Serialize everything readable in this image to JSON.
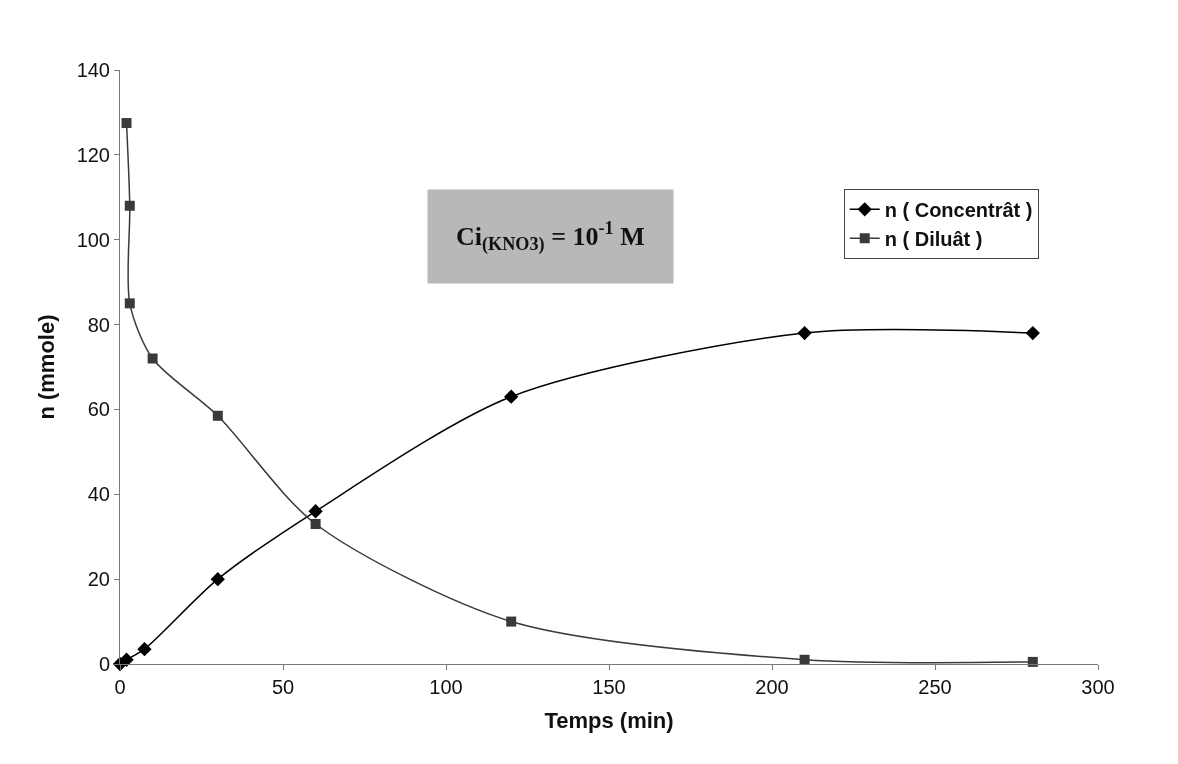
{
  "chart_data": {
    "type": "line",
    "xlabel": "Temps (min)",
    "ylabel": "n (mmole)",
    "annotations": [
      "Ci$_{(KNO3)}$ = 10$^{-1}$ M"
    ],
    "series": [
      {
        "name": "n ( Concentrât )",
        "color": "#000000",
        "marker": "diamond",
        "x": [
          0,
          2,
          7.5,
          30,
          60,
          120,
          210,
          280
        ],
        "values": [
          0,
          1,
          3.5,
          20,
          36,
          63,
          78,
          78
        ]
      },
      {
        "name": "n ( Diluât )",
        "color": "#3a3a3a",
        "marker": "square",
        "x": [
          2,
          3,
          3,
          10,
          30,
          60,
          120,
          210,
          280
        ],
        "values": [
          127.5,
          108,
          85,
          72,
          58.5,
          33,
          10,
          1,
          0.5
        ]
      }
    ],
    "xlim": [
      0,
      300
    ],
    "xticks": [
      0,
      50,
      100,
      150,
      200,
      250,
      300
    ],
    "ylim": [
      0,
      140
    ],
    "yticks": [
      0,
      20,
      40,
      60,
      80,
      100,
      120,
      140
    ],
    "legend": "right",
    "line_style": "solid"
  }
}
